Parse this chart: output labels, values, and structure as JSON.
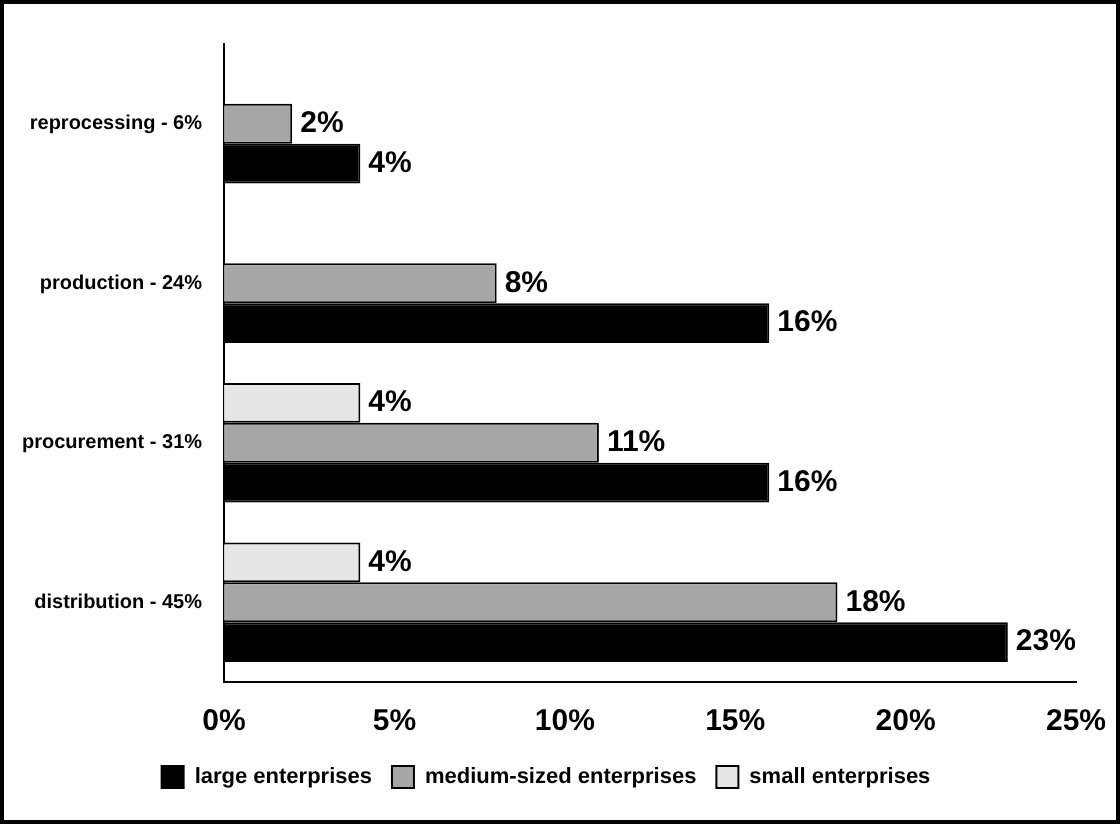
{
  "chart_data": {
    "type": "bar",
    "orientation": "horizontal",
    "categories": [
      "reprocessing - 6%",
      "production - 24%",
      "procurement - 31%",
      "distribution - 45%"
    ],
    "series": [
      {
        "name": "small enterprises",
        "color": "#e6e6e6",
        "values": [
          null,
          null,
          4,
          4
        ],
        "value_labels": [
          null,
          null,
          "4%",
          "4%"
        ]
      },
      {
        "name": "medium-sized enterprises",
        "color": "#a6a6a6",
        "values": [
          2,
          8,
          11,
          18
        ],
        "value_labels": [
          "2%",
          "8%",
          "11%",
          "18%"
        ]
      },
      {
        "name": "large enterprises",
        "color": "#000000",
        "values": [
          4,
          16,
          16,
          23
        ],
        "value_labels": [
          "4%",
          "16%",
          "16%",
          "23%"
        ]
      }
    ],
    "xlim": [
      0,
      25
    ],
    "xticks": [
      {
        "value": 0,
        "label": "0%"
      },
      {
        "value": 5,
        "label": "5%"
      },
      {
        "value": 10,
        "label": "10%"
      },
      {
        "value": 15,
        "label": "15%"
      },
      {
        "value": 20,
        "label": "20%"
      },
      {
        "value": 25,
        "label": "25%"
      }
    ],
    "grid": false,
    "legend": "bottom"
  }
}
